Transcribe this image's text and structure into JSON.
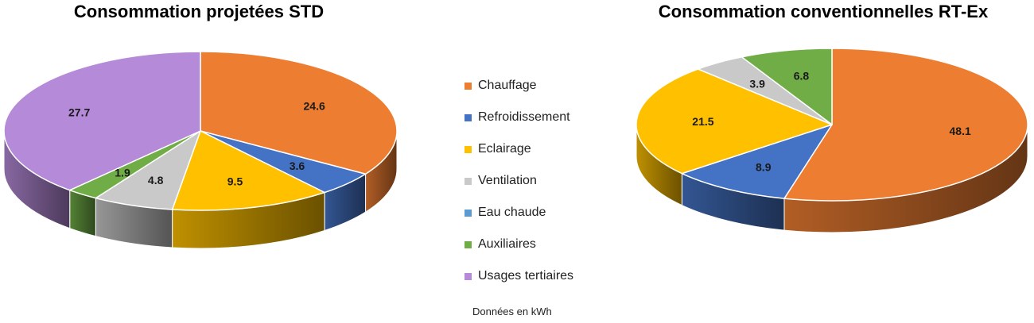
{
  "chart_data": [
    {
      "type": "pie",
      "title": "Consommation projetées STD",
      "categories": [
        "Chauffage",
        "Refroidissement",
        "Eclairage",
        "Ventilation",
        "Eau chaude",
        "Auxiliaires",
        "Usages tertiaires"
      ],
      "values": [
        24.6,
        3.6,
        9.5,
        4.8,
        0,
        1.9,
        27.7
      ],
      "labels": [
        "24.6",
        "3.6",
        "9.5",
        "4.8",
        "",
        "1.9",
        "27.7"
      ]
    },
    {
      "type": "pie",
      "title": "Consommation conventionnelles RT-Ex",
      "categories": [
        "Chauffage",
        "Refroidissement",
        "Eclairage",
        "Ventilation",
        "Eau chaude",
        "Auxiliaires",
        "Usages tertiaires"
      ],
      "values": [
        48.1,
        8.9,
        21.5,
        3.9,
        0,
        6.8,
        0
      ],
      "labels": [
        "48.1",
        "8.9",
        "21.5",
        "3.9",
        "",
        "6.8",
        ""
      ]
    }
  ],
  "legend": {
    "items": [
      {
        "label": "Chauffage",
        "color": "#ED7D31"
      },
      {
        "label": "Refroidissement",
        "color": "#4472C4"
      },
      {
        "label": "Eclairage",
        "color": "#FFC000"
      },
      {
        "label": "Ventilation",
        "color": "#C9C9C9"
      },
      {
        "label": "Eau chaude",
        "color": "#5B9BD5"
      },
      {
        "label": "Auxiliaires",
        "color": "#70AD47"
      },
      {
        "label": "Usages tertiaires",
        "color": "#B58AD8"
      }
    ]
  },
  "note": "Données en kWh"
}
